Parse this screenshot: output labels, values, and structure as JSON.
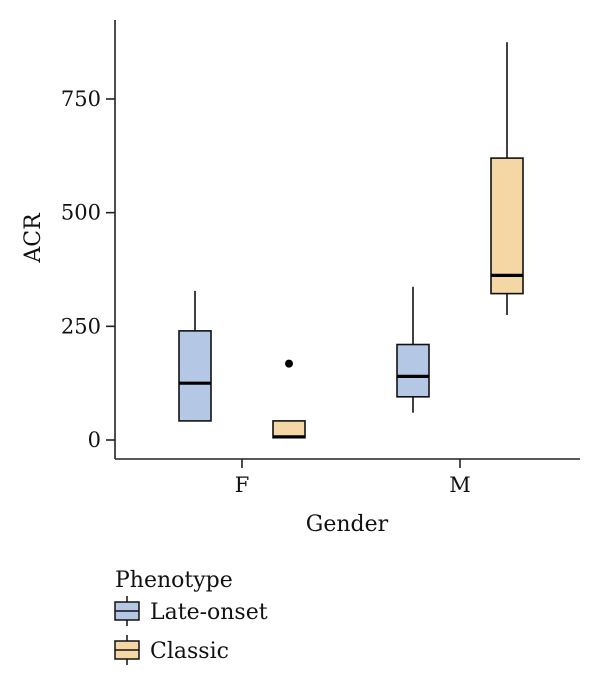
{
  "chart_data": {
    "type": "boxplot",
    "xlabel": "Gender",
    "ylabel": "ACR",
    "categories": [
      "F",
      "M"
    ],
    "yticks": [
      0,
      250,
      500,
      750
    ],
    "ylim": [
      -42,
      920
    ],
    "grid": false,
    "legend": {
      "title": "Phenotype",
      "placement": "bottom-left",
      "entries": [
        {
          "name": "Late-onset",
          "color": "#b4c8e6"
        },
        {
          "name": "Classic",
          "color": "#f5d7a5"
        }
      ]
    },
    "series": [
      {
        "name": "Late-onset",
        "color": "#b4c8e6",
        "boxes": [
          {
            "category": "F",
            "min": 42,
            "q1": 42,
            "median": 125,
            "q3": 240,
            "max": 328,
            "outliers": []
          },
          {
            "category": "M",
            "min": 60,
            "q1": 95,
            "median": 140,
            "q3": 210,
            "max": 337,
            "outliers": []
          }
        ]
      },
      {
        "name": "Classic",
        "color": "#f5d7a5",
        "boxes": [
          {
            "category": "F",
            "min": 5,
            "q1": 5,
            "median": 7,
            "q3": 42,
            "max": 42,
            "outliers": [
              168
            ]
          },
          {
            "category": "M",
            "min": 275,
            "q1": 322,
            "median": 362,
            "q3": 620,
            "max": 875,
            "outliers": []
          }
        ]
      }
    ]
  }
}
